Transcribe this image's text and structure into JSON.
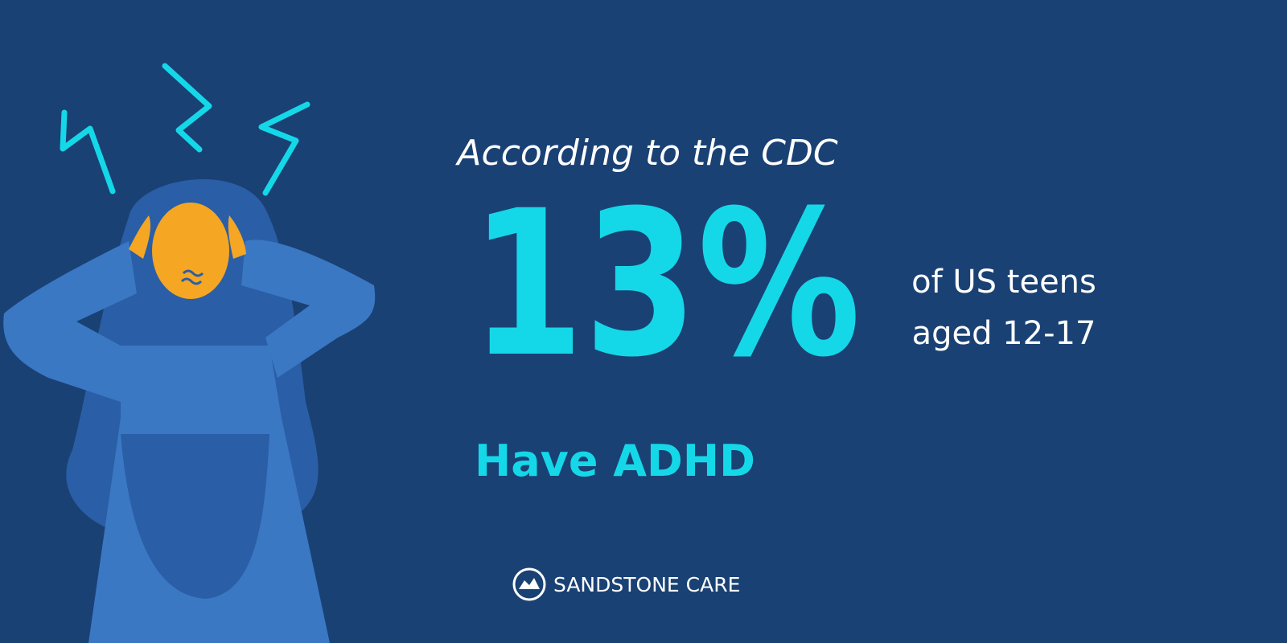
{
  "header": {
    "intro": "According to the CDC"
  },
  "stat": {
    "figure": "13%",
    "line_1": "of US teens",
    "line_2": "aged 12-17",
    "conclusion": "Have ADHD"
  },
  "footer": {
    "brand": "SANDSTONE CARE"
  }
}
